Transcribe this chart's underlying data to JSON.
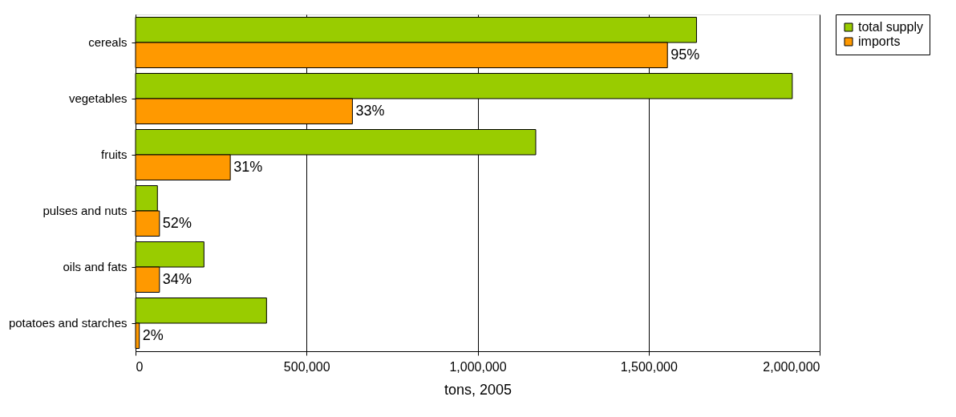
{
  "chart_data": {
    "type": "bar",
    "orientation": "horizontal",
    "xlabel": "tons, 2005",
    "categories": [
      "cereals",
      "vegetables",
      "fruits",
      "pulses and nuts",
      "oils and fats",
      "potatoes and starches"
    ],
    "series": [
      {
        "name": "total supply",
        "color": "#99cc00",
        "values": [
          1640000,
          1920000,
          1170000,
          64000,
          200000,
          383000
        ]
      },
      {
        "name": "imports",
        "color": "#ff9900",
        "values": [
          1555000,
          634000,
          277000,
          70000,
          70000,
          11000
        ]
      }
    ],
    "annotations": [
      {
        "text": "95%",
        "x": 1555000,
        "y": "cereals"
      },
      {
        "text": "33%",
        "x": 634000,
        "y": "vegetables"
      },
      {
        "text": "31%",
        "x": 277000,
        "y": "fruits"
      },
      {
        "text": "52%",
        "x": 70000,
        "y": "pulses and nuts"
      },
      {
        "text": "34%",
        "x": 70000,
        "y": "oils and fats"
      },
      {
        "text": "2%",
        "x": 11000,
        "y": "potatoes and starches"
      }
    ],
    "xlim": [
      0,
      2000000
    ],
    "xticks": [
      {
        "value": 0,
        "label": "0"
      },
      {
        "value": 500000,
        "label": "500,000"
      },
      {
        "value": 1000000,
        "label": "1,000,000"
      },
      {
        "value": 1500000,
        "label": "1,500,000"
      },
      {
        "value": 2000000,
        "label": "2,000,000"
      }
    ],
    "grid": "x",
    "legend": "right"
  }
}
